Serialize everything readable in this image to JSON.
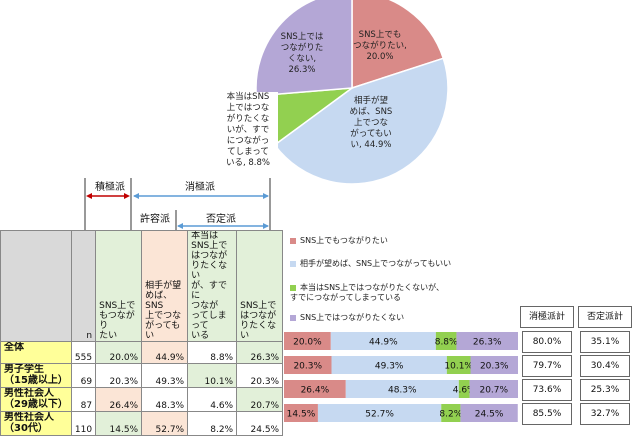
{
  "chart_data": [
    {
      "type": "pie",
      "slices": [
        {
          "label_lines": [
            "SNS上でも",
            "つながりたい,",
            "20.0%"
          ],
          "value": 20.0,
          "color": "#d98a88"
        },
        {
          "label_lines": [
            "相手が望",
            "めば、SNS",
            "上でつな",
            "がってもい",
            "い, 44.9%"
          ],
          "value": 44.9,
          "color": "#c6d9f1"
        },
        {
          "label_lines": [
            "本当はSNS",
            "上ではつな",
            "がりたくな",
            "いが、すで",
            "につながっ",
            "てしまって",
            "いる, 8.8%"
          ],
          "value": 8.8,
          "color": "#92d050"
        },
        {
          "label_lines": [
            "SNS上では",
            "つながりた",
            "くない,",
            "26.3%"
          ],
          "value": 26.3,
          "color": "#b4a7d6"
        }
      ]
    },
    {
      "type": "bar",
      "stacked": true,
      "orientation": "horizontal",
      "categories": [
        "全体",
        "男子学生（15歳以上）",
        "男性社会人（29歳以下）",
        "男性社会人（30代）"
      ],
      "series": [
        {
          "name": "SNS上でもつながりたい",
          "color": "#d98a88",
          "values": [
            20.0,
            20.3,
            26.4,
            14.5
          ]
        },
        {
          "name": "相手が望めば、SNS上でつながってもいい",
          "color": "#c6d9f1",
          "values": [
            44.9,
            49.3,
            48.3,
            52.7
          ]
        },
        {
          "name": "本当はSNS上ではつながりたくないが、すでにつながってしまっている",
          "color": "#92d050",
          "values": [
            8.8,
            10.1,
            4.6,
            8.2
          ]
        },
        {
          "name": "SNS上ではつながりたくない",
          "color": "#b4a7d6",
          "values": [
            26.3,
            20.3,
            20.7,
            24.5
          ]
        }
      ],
      "value_labels": [
        [
          "20.0%",
          "44.9%",
          "8.8%",
          "26.3%"
        ],
        [
          "20.3%",
          "49.3%",
          "10.1%",
          "20.3%"
        ],
        [
          "26.4%",
          "48.3%",
          "4.6%",
          "20.7%"
        ],
        [
          "14.5%",
          "52.7%",
          "8.2%",
          "24.5%"
        ]
      ],
      "summary_headers": [
        "消極派計",
        "否定派計"
      ],
      "summary_values": [
        [
          "80.0%",
          "35.1%"
        ],
        [
          "79.7%",
          "30.4%"
        ],
        [
          "73.6%",
          "25.3%"
        ],
        [
          "85.5%",
          "32.7%"
        ]
      ]
    }
  ],
  "groups": {
    "sekkyoku": "積極派",
    "shokyoku": "消極派",
    "kyoyo": "許容派",
    "hitei": "否定派"
  },
  "table": {
    "n_label": "n",
    "col_headers": [
      [
        "SNS上で",
        "もつながり",
        "たい"
      ],
      [
        "相手が望",
        "めば、SNS",
        "上でつな",
        "がっても",
        "い"
      ],
      [
        "本当は",
        "SNS上で",
        "はつなが",
        "りたくない",
        "が、すでに",
        "つなが",
        "ってしまって",
        "いる"
      ],
      [
        "SNS上で",
        "はつなが",
        "りたくない"
      ]
    ],
    "rows": [
      {
        "label_lines": [
          "全体"
        ],
        "n": "555",
        "cells": [
          "20.0%",
          "44.9%",
          "8.8%",
          "26.3%"
        ]
      },
      {
        "label_lines": [
          "男子学生",
          "（15歳以上）"
        ],
        "n": "69",
        "cells": [
          "20.3%",
          "49.3%",
          "10.1%",
          "20.3%"
        ]
      },
      {
        "label_lines": [
          "男性社会人",
          "（29歳以下）"
        ],
        "n": "87",
        "cells": [
          "26.4%",
          "48.3%",
          "4.6%",
          "20.7%"
        ]
      },
      {
        "label_lines": [
          "男性社会人",
          "（30代）"
        ],
        "n": "110",
        "cells": [
          "14.5%",
          "52.7%",
          "8.2%",
          "24.5%"
        ]
      }
    ]
  },
  "colors": {
    "red": "#d98a88",
    "blue": "#c6d9f1",
    "green": "#92d050",
    "purple": "#b4a7d6",
    "header_green": "#e2f0d9",
    "header_orange": "#fbe5d6",
    "label_yellow": "#ffff99",
    "gray": "#d9d9d9"
  }
}
